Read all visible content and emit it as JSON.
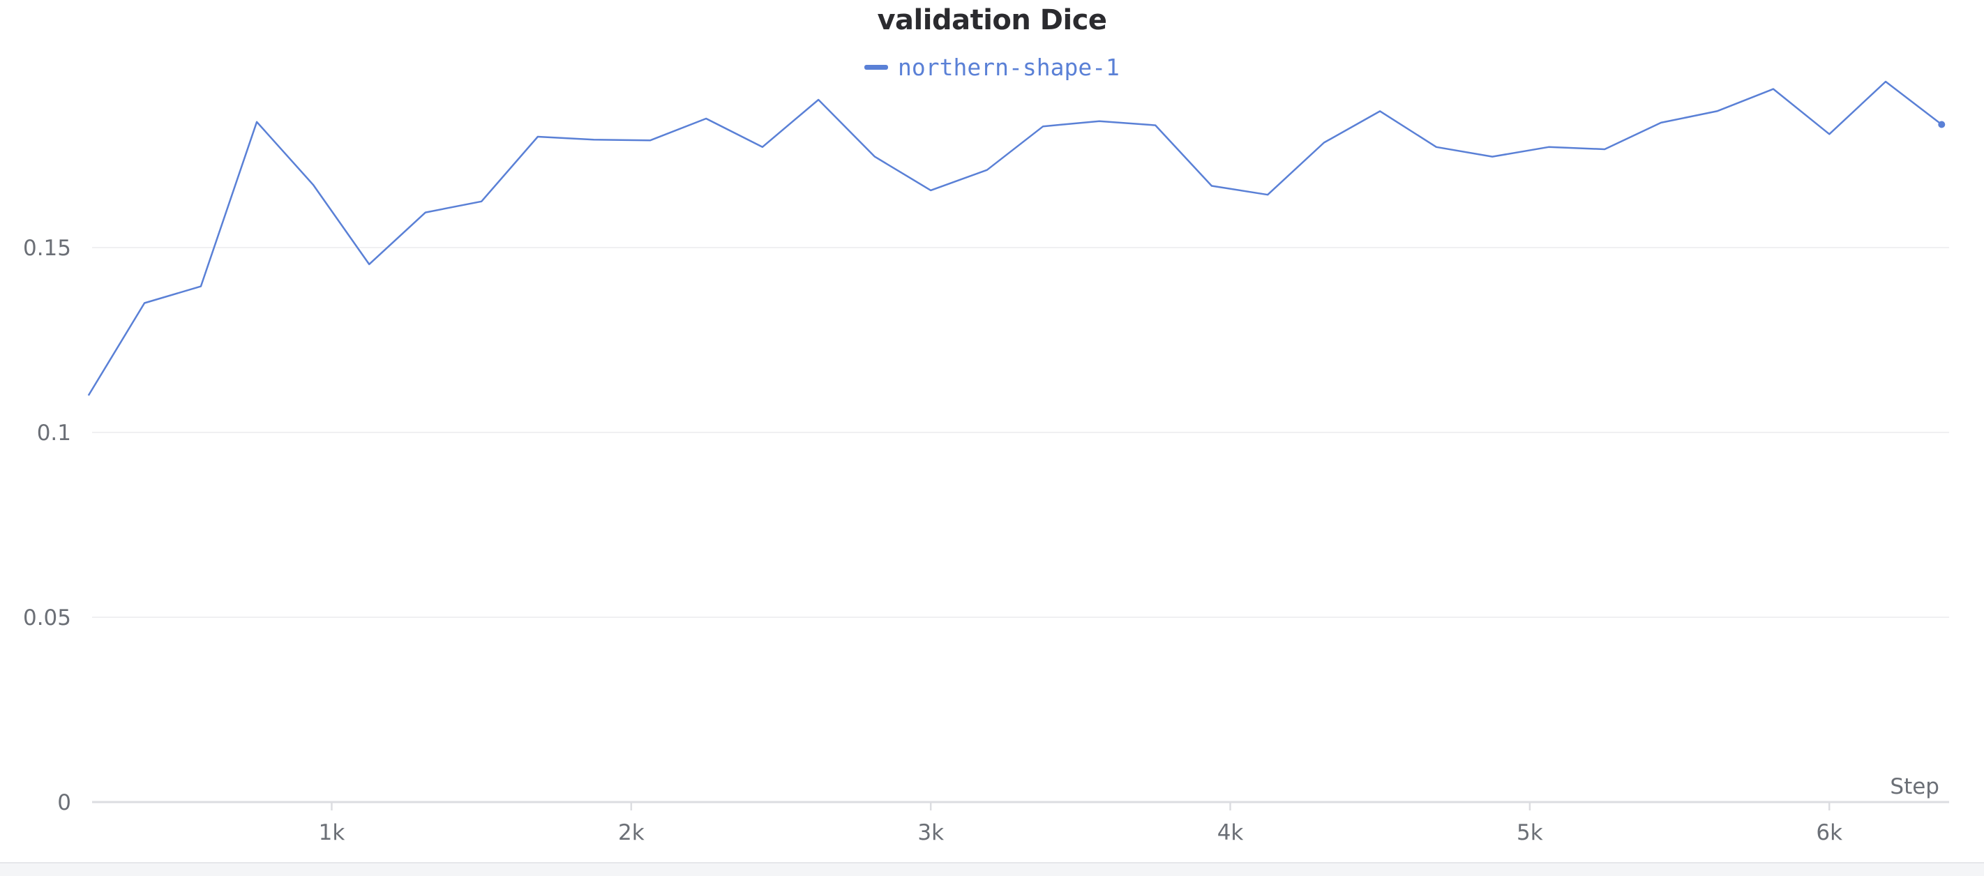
{
  "chart_data": {
    "type": "line",
    "title": "validation Dice",
    "xlabel": "Step",
    "ylabel": "",
    "xlim": [
      200,
      6400
    ],
    "ylim": [
      0,
      0.2
    ],
    "x_ticks": [
      1000,
      2000,
      3000,
      4000,
      5000,
      6000
    ],
    "x_tick_labels": [
      "1k",
      "2k",
      "3k",
      "4k",
      "5k",
      "6k"
    ],
    "y_ticks": [
      0,
      0.05,
      0.1,
      0.15
    ],
    "y_tick_labels": [
      "0",
      "0.05",
      "0.1",
      "0.15"
    ],
    "grid": true,
    "legend_position": "top-center",
    "series": [
      {
        "name": "northern-shape-1",
        "color": "#5a80d6",
        "x": [
          188,
          375,
          563,
          750,
          938,
          1125,
          1313,
          1500,
          1688,
          1875,
          2063,
          2250,
          2438,
          2625,
          2813,
          3000,
          3188,
          3375,
          3563,
          3750,
          3938,
          4125,
          4313,
          4500,
          4688,
          4875,
          5063,
          5250,
          5438,
          5625,
          5813,
          6000,
          6188,
          6375
        ],
        "values": [
          0.11,
          0.135,
          0.1395,
          0.184,
          0.167,
          0.1455,
          0.1595,
          0.1625,
          0.18,
          0.1792,
          0.179,
          0.1849,
          0.1772,
          0.19,
          0.1746,
          0.1655,
          0.171,
          0.1828,
          0.1842,
          0.1831,
          0.1667,
          0.1643,
          0.1784,
          0.1869,
          0.1772,
          0.1746,
          0.1772,
          0.1766,
          0.1838,
          0.1869,
          0.1929,
          0.1807,
          0.1949,
          0.1833
        ]
      }
    ]
  }
}
